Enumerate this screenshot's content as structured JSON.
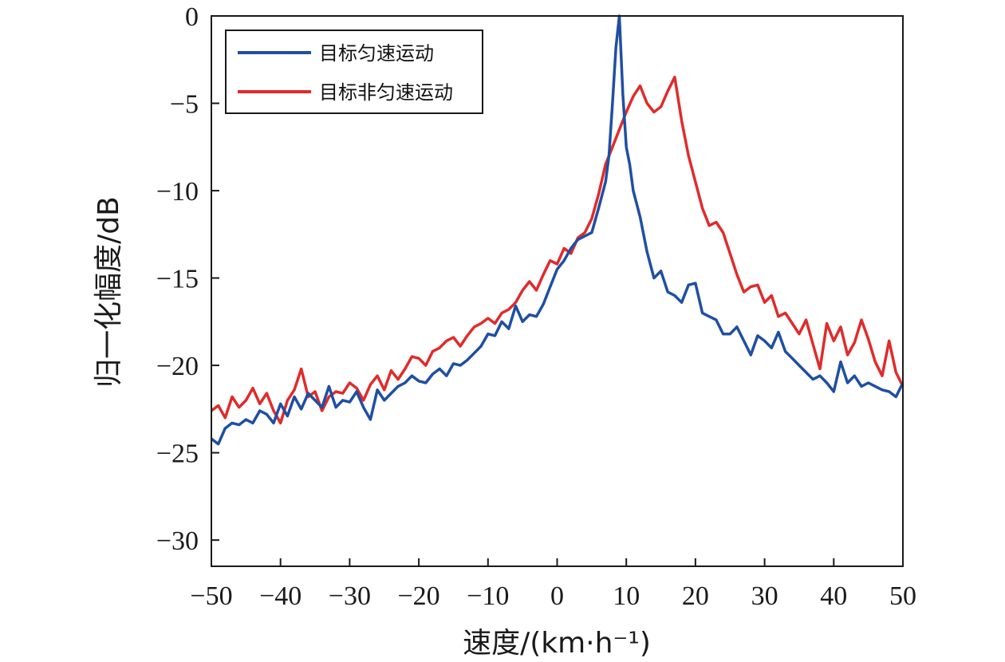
{
  "chart_data": {
    "type": "line",
    "title": "",
    "xlabel": "速度/(km·h⁻¹)",
    "ylabel": "归一化幅度/dB",
    "xlim": [
      -50,
      50
    ],
    "ylim": [
      -31.5,
      0
    ],
    "xticks": [
      -50,
      -40,
      -30,
      -20,
      -10,
      0,
      10,
      20,
      30,
      40,
      50
    ],
    "yticks": [
      0,
      -5,
      -10,
      -15,
      -20,
      -25,
      -30
    ],
    "xtick_labels": [
      "−50",
      "−40",
      "−30",
      "−20",
      "−10",
      "0",
      "10",
      "20",
      "30",
      "40",
      "50"
    ],
    "ytick_labels": [
      "0",
      "−5",
      "−10",
      "−15",
      "−20",
      "−25",
      "−30"
    ],
    "grid": false,
    "legend_position": "top-left",
    "series": [
      {
        "name": "目标匀速运动",
        "color": "#1f4fa3",
        "x": [
          -50,
          -49,
          -48,
          -47,
          -46,
          -45,
          -44,
          -43,
          -42,
          -41,
          -40,
          -39,
          -38,
          -37,
          -36,
          -35,
          -34,
          -33,
          -32,
          -31,
          -30,
          -29,
          -28,
          -27,
          -26,
          -25,
          -24,
          -23,
          -22,
          -21,
          -20,
          -19,
          -18,
          -17,
          -16,
          -15,
          -14,
          -13,
          -12,
          -11,
          -10,
          -9,
          -8,
          -7,
          -6,
          -5,
          -4,
          -3,
          -2,
          -1,
          0,
          1,
          2,
          3,
          4,
          5,
          6,
          7,
          7.5,
          8,
          8.5,
          9,
          9.5,
          10,
          10.5,
          11,
          12,
          13,
          14,
          15,
          16,
          17,
          18,
          19,
          20,
          21,
          22,
          23,
          24,
          25,
          26,
          27,
          28,
          29,
          30,
          31,
          32,
          33,
          34,
          35,
          36,
          37,
          38,
          39,
          40,
          41,
          42,
          43,
          44,
          45,
          46,
          47,
          48,
          49,
          50
        ],
        "y": [
          -24.2,
          -24.5,
          -23.6,
          -23.3,
          -23.4,
          -23.1,
          -23.3,
          -22.6,
          -22.8,
          -23.3,
          -22.2,
          -22.9,
          -21.8,
          -22.5,
          -21.6,
          -22.0,
          -22.4,
          -21.2,
          -22.4,
          -22.0,
          -22.1,
          -21.5,
          -22.4,
          -23.1,
          -21.4,
          -22.0,
          -21.6,
          -21.2,
          -21.0,
          -20.6,
          -20.9,
          -21.0,
          -20.5,
          -20.2,
          -20.6,
          -19.9,
          -20.0,
          -19.7,
          -19.3,
          -18.9,
          -18.2,
          -18.3,
          -17.5,
          -17.9,
          -16.6,
          -17.5,
          -17.1,
          -17.2,
          -16.5,
          -15.5,
          -14.5,
          -14.0,
          -13.3,
          -12.8,
          -12.6,
          -12.4,
          -11.0,
          -9.5,
          -8.0,
          -5.0,
          -1.8,
          0.0,
          -4.5,
          -7.5,
          -8.5,
          -10.0,
          -11.5,
          -13.5,
          -15.0,
          -14.6,
          -15.8,
          -16.0,
          -16.4,
          -15.4,
          -15.3,
          -17.0,
          -17.2,
          -17.4,
          -18.2,
          -18.2,
          -17.8,
          -18.6,
          -19.4,
          -18.3,
          -18.6,
          -19.0,
          -18.1,
          -19.2,
          -19.6,
          -20.0,
          -20.4,
          -20.8,
          -20.6,
          -21.0,
          -21.5,
          -19.8,
          -21.0,
          -20.6,
          -21.2,
          -21.0,
          -21.2,
          -21.4,
          -21.5,
          -21.8,
          -21.0
        ]
      },
      {
        "name": "目标非匀速运动",
        "color": "#e02b2b",
        "x": [
          -50,
          -49,
          -48,
          -47,
          -46,
          -45,
          -44,
          -43,
          -42,
          -41,
          -40,
          -39,
          -38,
          -37,
          -36,
          -35,
          -34,
          -33,
          -32,
          -31,
          -30,
          -29,
          -28,
          -27,
          -26,
          -25,
          -24,
          -23,
          -22,
          -21,
          -20,
          -19,
          -18,
          -17,
          -16,
          -15,
          -14,
          -13,
          -12,
          -11,
          -10,
          -9,
          -8,
          -7,
          -6,
          -5,
          -4,
          -3,
          -2,
          -1,
          0,
          1,
          2,
          3,
          4,
          5,
          6,
          7,
          8,
          9,
          10,
          11,
          12,
          13,
          14,
          15,
          16,
          17,
          18,
          19,
          20,
          21,
          22,
          23,
          24,
          25,
          26,
          27,
          28,
          29,
          30,
          31,
          32,
          33,
          34,
          35,
          36,
          37,
          38,
          39,
          40,
          41,
          42,
          43,
          44,
          45,
          46,
          47,
          48,
          49,
          50
        ],
        "y": [
          -22.6,
          -22.3,
          -23.0,
          -21.8,
          -22.4,
          -22.0,
          -21.3,
          -22.2,
          -21.6,
          -22.6,
          -23.3,
          -22.0,
          -21.4,
          -20.2,
          -21.8,
          -21.5,
          -22.6,
          -21.8,
          -21.5,
          -21.6,
          -21.0,
          -21.3,
          -22.0,
          -21.1,
          -20.6,
          -21.4,
          -20.3,
          -20.8,
          -20.2,
          -19.5,
          -19.6,
          -20.0,
          -19.2,
          -19.0,
          -18.6,
          -18.4,
          -18.9,
          -18.3,
          -17.8,
          -17.6,
          -17.3,
          -17.6,
          -17.0,
          -16.8,
          -16.4,
          -15.7,
          -15.2,
          -15.7,
          -14.8,
          -14.0,
          -14.2,
          -13.3,
          -13.6,
          -12.7,
          -12.4,
          -11.6,
          -10.2,
          -8.5,
          -7.5,
          -6.5,
          -5.5,
          -4.6,
          -4.0,
          -5.0,
          -5.5,
          -5.2,
          -4.3,
          -3.5,
          -6.0,
          -8.0,
          -9.5,
          -11.0,
          -12.0,
          -11.8,
          -12.4,
          -13.6,
          -14.8,
          -15.8,
          -15.5,
          -15.4,
          -16.4,
          -16.0,
          -17.2,
          -17.0,
          -17.6,
          -18.2,
          -17.4,
          -18.8,
          -20.2,
          -17.6,
          -18.6,
          -17.8,
          -19.4,
          -18.7,
          -17.4,
          -18.5,
          -19.8,
          -20.6,
          -18.6,
          -20.4,
          -21.2
        ]
      }
    ]
  }
}
